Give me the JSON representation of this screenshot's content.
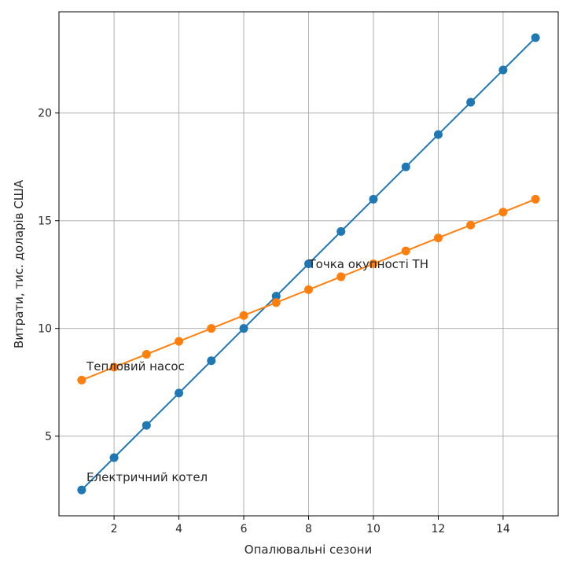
{
  "chart_data": {
    "type": "line",
    "title": "",
    "xlabel": "Опалювальні сезони",
    "ylabel": "Витрати, тис. доларів США",
    "xlim": [
      0.3,
      15.7
    ],
    "ylim": [
      1.3,
      24.7
    ],
    "grid": true,
    "x": [
      1,
      2,
      3,
      4,
      5,
      6,
      7,
      8,
      9,
      10,
      11,
      12,
      13,
      14,
      15
    ],
    "xticks": [
      "2",
      "4",
      "6",
      "8",
      "10",
      "12",
      "14"
    ],
    "xtick_values": [
      2,
      4,
      6,
      8,
      10,
      12,
      14
    ],
    "yticks": [
      "5",
      "10",
      "15",
      "20"
    ],
    "ytick_values": [
      5,
      10,
      15,
      20
    ],
    "series": [
      {
        "name": "Електричний котел",
        "color": "#1f77b4",
        "values": [
          2.5,
          4.0,
          5.5,
          7.0,
          8.5,
          10.0,
          11.5,
          13.0,
          14.5,
          16.0,
          17.5,
          19.0,
          20.5,
          22.0,
          23.5
        ]
      },
      {
        "name": "Тепловий насос",
        "color": "#ff7f0e",
        "values": [
          7.6,
          8.2,
          8.8,
          9.4,
          10.0,
          10.6,
          11.2,
          11.8,
          12.4,
          13.0,
          13.6,
          14.2,
          14.8,
          15.4,
          16.0
        ]
      }
    ],
    "annotations": [
      {
        "text": "Електричний котел",
        "x": 1.15,
        "y": 2.9
      },
      {
        "text": "Тепловий насос",
        "x": 1.15,
        "y": 8.05
      },
      {
        "text": "Точка окупності ТН",
        "x": 8.0,
        "y": 12.8
      }
    ]
  }
}
